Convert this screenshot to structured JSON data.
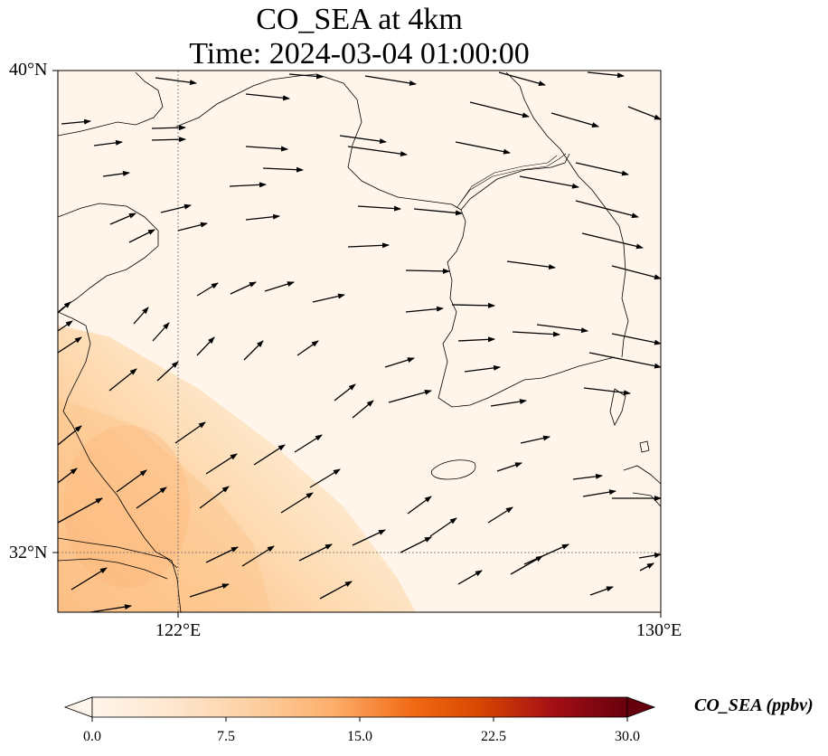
{
  "title": {
    "line1": "CO_SEA at 4km",
    "line2": "Time: 2024-03-04 01:00:00"
  },
  "axes": {
    "lat_labels": [
      "40°N",
      "32°N"
    ],
    "lon_labels": [
      "122°E",
      "130°E"
    ],
    "lat_range": [
      31,
      40
    ],
    "lon_range": [
      120,
      130
    ],
    "gridlines": {
      "lat": [
        32,
        40
      ],
      "lon": [
        122,
        130
      ],
      "style": "dotted"
    }
  },
  "colorbar": {
    "label": "CO_SEA (ppbv)",
    "ticks": [
      "0.0",
      "7.5",
      "15.0",
      "22.5",
      "30.0"
    ],
    "min": 0,
    "max": 30,
    "colormap": "Oranges-to-dark-red",
    "extend": "both",
    "colors": [
      "#fff5eb",
      "#fee6ce",
      "#fdd0a2",
      "#fdae6b",
      "#f16913",
      "#d94801",
      "#a50f15",
      "#67000d"
    ]
  },
  "chart_data": {
    "type": "heatmap",
    "variable": "CO_SEA",
    "units": "ppbv",
    "description_of_field": "Elevated values (about 5-10 ppbv) over the southwest corner near the Chinese coast and Yangtze delta, decreasing toward the northeast to near 0",
    "max_visible_value": 10,
    "wind_vectors": "westerly to west-southwesterly arrows across the domain"
  }
}
